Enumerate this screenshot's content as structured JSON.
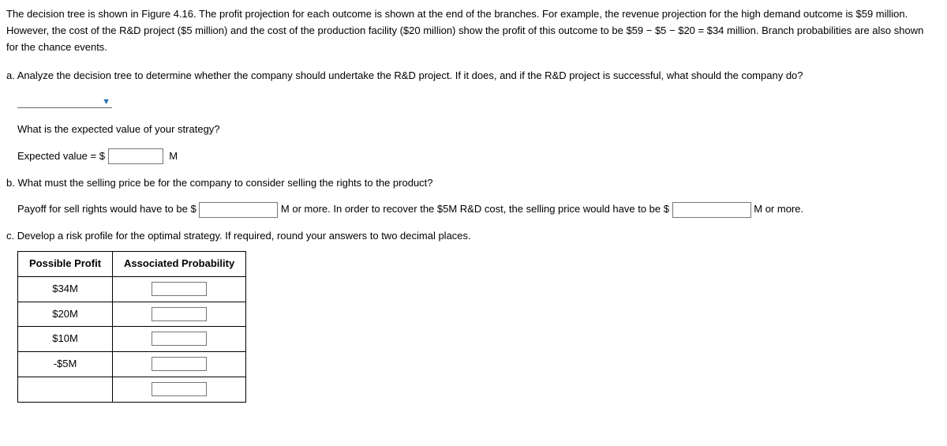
{
  "intro": "The decision tree is shown in Figure 4.16. The profit projection for each outcome is shown at the end of the branches. For example, the revenue projection for the high demand outcome is $59 million. However, the cost of the R&D project ($5 million) and the cost of the production facility ($20 million) show the profit of this outcome to be $59 − $5 − $20 = $34 million. Branch probabilities are also shown for the chance events.",
  "a": {
    "question": "a. Analyze the decision tree to determine whether the company should undertake the R&D project. If it does, and if the R&D project is successful, what should the company do?",
    "ev_question": "What is the expected value of your strategy?",
    "ev_prefix": "Expected value = $",
    "ev_suffix": "M"
  },
  "b": {
    "question": "b. What must the selling price be for the company to consider selling the rights to the product?",
    "payoff_prefix": "Payoff for sell rights would have to be $",
    "payoff_mid": "M or more. In order to recover the $5M R&D cost, the selling price would have to be $",
    "payoff_suffix": "M or more."
  },
  "c": {
    "question": "c. Develop a risk profile for the optimal strategy. If required, round your answers to two decimal places.",
    "col1": "Possible Profit",
    "col2": "Associated Probability",
    "rows": [
      {
        "profit": "$34M"
      },
      {
        "profit": "$20M"
      },
      {
        "profit": "$10M"
      },
      {
        "profit": "-$5M"
      },
      {
        "profit": ""
      }
    ]
  }
}
